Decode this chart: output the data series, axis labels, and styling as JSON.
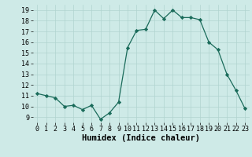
{
  "x": [
    0,
    1,
    2,
    3,
    4,
    5,
    6,
    7,
    8,
    9,
    10,
    11,
    12,
    13,
    14,
    15,
    16,
    17,
    18,
    19,
    20,
    21,
    22,
    23
  ],
  "y": [
    11.2,
    11.0,
    10.8,
    10.0,
    10.1,
    9.7,
    10.1,
    8.8,
    9.4,
    10.4,
    15.5,
    17.1,
    17.2,
    19.0,
    18.2,
    19.0,
    18.3,
    18.3,
    18.1,
    16.0,
    15.3,
    13.0,
    11.5,
    9.8
  ],
  "xlabel": "Humidex (Indice chaleur)",
  "bg_color": "#ceeae7",
  "grid_color": "#b0d4d0",
  "line_color": "#1a6b5a",
  "marker_color": "#1a6b5a",
  "xlim": [
    -0.5,
    23.5
  ],
  "ylim": [
    8.5,
    19.5
  ],
  "xticks": [
    0,
    1,
    2,
    3,
    4,
    5,
    6,
    7,
    8,
    9,
    10,
    11,
    12,
    13,
    14,
    15,
    16,
    17,
    18,
    19,
    20,
    21,
    22,
    23
  ],
  "yticks": [
    9,
    10,
    11,
    12,
    13,
    14,
    15,
    16,
    17,
    18,
    19
  ],
  "xlabel_fontsize": 7.5,
  "tick_fontsize": 6.0
}
